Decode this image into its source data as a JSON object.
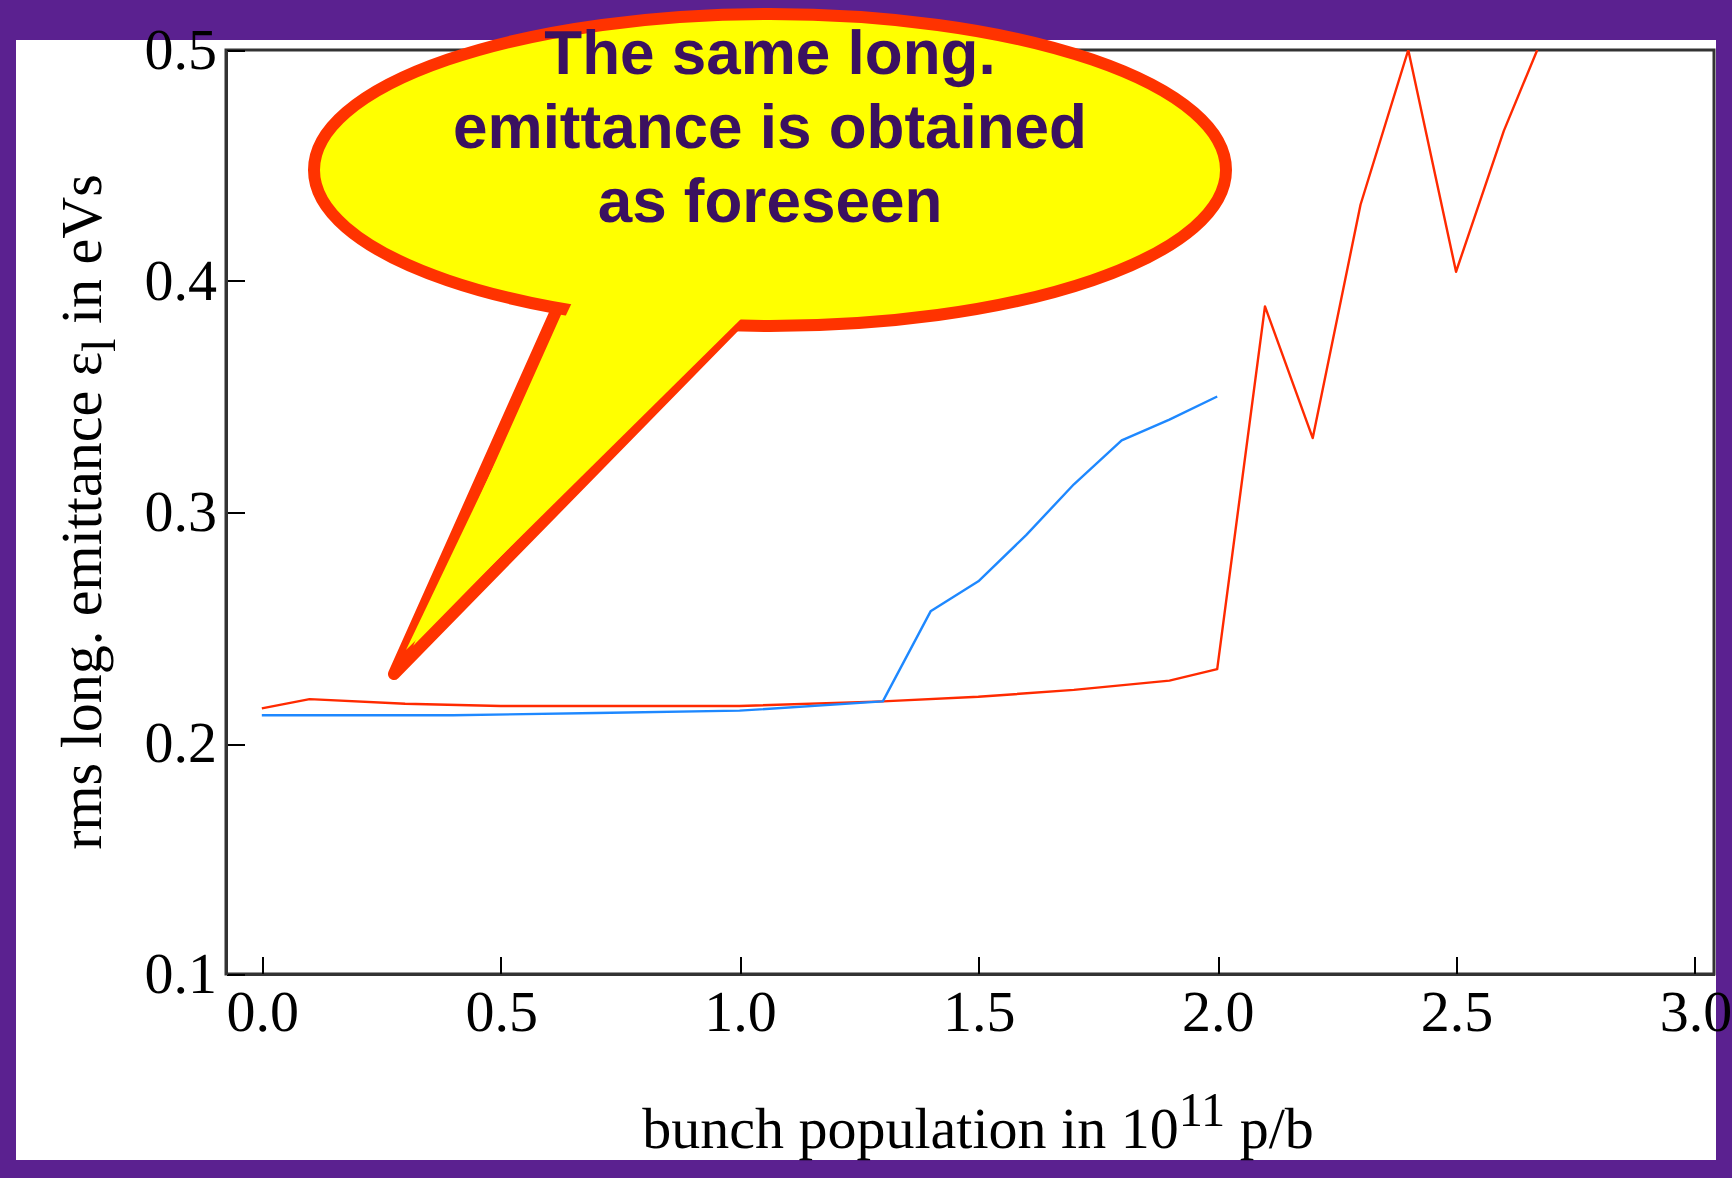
{
  "chart_data": {
    "type": "line",
    "xlabel": "bunch population in 10$^{11}$ p/b",
    "ylabel": "rms long. emittance ε$_{l}$ in eVs",
    "annotations": [
      "The same long. emittance is obtained as foreseen"
    ],
    "series": [
      {
        "color": "#ff2a00",
        "x": [
          0,
          0.1,
          0.3,
          0.5,
          0.7,
          1.0,
          1.3,
          1.5,
          1.7,
          1.9,
          2.0,
          2.1,
          2.2,
          2.3,
          2.4,
          2.5,
          2.6,
          2.67
        ],
        "values": [
          0.215,
          0.219,
          0.217,
          0.216,
          0.216,
          0.216,
          0.218,
          0.22,
          0.223,
          0.227,
          0.232,
          0.389,
          0.332,
          0.433,
          0.5,
          0.404,
          0.465,
          0.5
        ]
      },
      {
        "color": "#1e88ff",
        "x": [
          0,
          0.4,
          0.7,
          1.0,
          1.3,
          1.4,
          1.5,
          1.6,
          1.7,
          1.8,
          1.9,
          2.0
        ],
        "values": [
          0.212,
          0.212,
          0.213,
          0.214,
          0.218,
          0.257,
          0.27,
          0.29,
          0.312,
          0.331,
          0.34,
          0.35
        ]
      }
    ],
    "xlim": [
      -0.075,
      3.04
    ],
    "xticks": [
      {
        "value": 0,
        "label": "0.0"
      },
      {
        "value": 0.5,
        "label": "0.5"
      },
      {
        "value": 1,
        "label": "1.0"
      },
      {
        "value": 1.5,
        "label": "1.5"
      },
      {
        "value": 2,
        "label": "2.0"
      },
      {
        "value": 2.5,
        "label": "2.5"
      },
      {
        "value": 3,
        "label": "3.0"
      }
    ],
    "ylim": [
      0.1,
      0.5
    ],
    "yticks": [
      0.1,
      0.2,
      0.3,
      0.4,
      0.5
    ],
    "line_style": "solid"
  }
}
